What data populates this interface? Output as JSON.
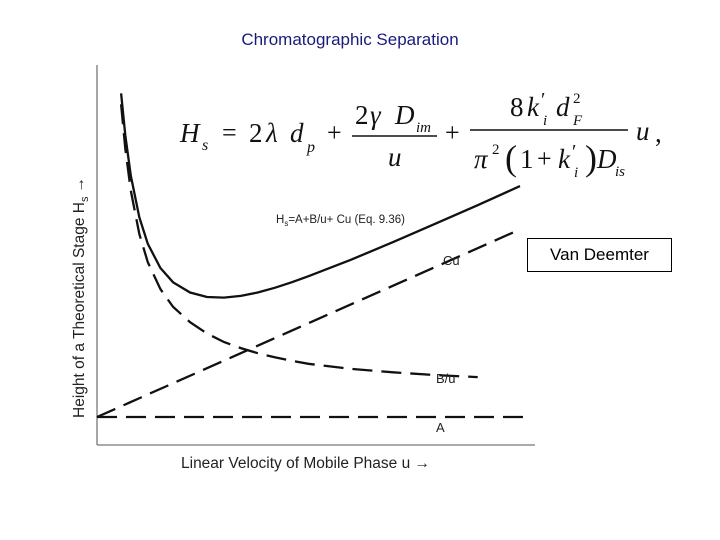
{
  "slide": {
    "title": "Chromatographic Separation",
    "badge": "Van Deemter"
  },
  "equation": {
    "lhs_main": "H",
    "lhs_sub": "s",
    "eq": "=",
    "t1_coef": "2",
    "t1_lambda": "λ",
    "t1_d": "d",
    "t1_sub": "p",
    "plus1": "+",
    "t2_num_coef": "2",
    "t2_num_gamma": "γ",
    "t2_num_D": "D",
    "t2_num_sub": "im",
    "t2_den": "u",
    "plus2": "+",
    "t3_num_coef": "8",
    "t3_num_k": "k",
    "t3_num_k_prime": "′",
    "t3_num_k_sub": "i",
    "t3_num_d": "d",
    "t3_num_d_sub": "F",
    "t3_num_d_sup": "2",
    "t3_den_pi": "π",
    "t3_den_pi_sup": "2",
    "t3_den_lparen": "(",
    "t3_den_one": "1",
    "t3_den_plus": "+",
    "t3_den_k": "k",
    "t3_den_k_prime": "′",
    "t3_den_k_sub": "i",
    "t3_den_rparen": ")",
    "t3_den_D": "D",
    "t3_den_D_sub": "is",
    "tail_u": "u",
    "tail_comma": ","
  },
  "chart_data": {
    "type": "line",
    "xlabel": "Linear Velocity of Mobile Phase  u →",
    "ylabel": "Height of a Theoretical Stage Hs →",
    "ylabel_main": "Height of a Theoretical Stage H",
    "ylabel_sub": "s",
    "ylabel_arrow": "→",
    "curve_label_main": "H",
    "curve_label_sub": "s",
    "curve_label_rest": "=A+B/u+ Cu (Eq. 9.36)",
    "grid": false,
    "xlim": [
      0,
      10
    ],
    "ylim": [
      0,
      10
    ],
    "series": [
      {
        "name": "Hs=A+B/u+ Cu (Eq. 9.36)",
        "style": "solid",
        "x": [
          0.57,
          0.67,
          0.8,
          1.0,
          1.2,
          1.5,
          1.8,
          2.2,
          2.6,
          3.0,
          3.4,
          3.8,
          4.2,
          4.6,
          5.0,
          6.0,
          7.0,
          8.0,
          9.0,
          10.0
        ],
        "y": [
          9.49,
          8.26,
          7.08,
          5.86,
          5.08,
          4.37,
          3.95,
          3.65,
          3.52,
          3.5,
          3.55,
          3.65,
          3.79,
          3.95,
          4.13,
          4.61,
          5.13,
          5.67,
          6.21,
          6.77
        ]
      },
      {
        "name": "Cu",
        "style": "dashed",
        "x": [
          0,
          10
        ],
        "y": [
          0,
          5.5
        ]
      },
      {
        "name": "B/u",
        "style": "dashed",
        "x": [
          0.57,
          0.67,
          0.8,
          1.0,
          1.2,
          1.5,
          1.8,
          2.2,
          2.6,
          3.0,
          3.4,
          3.8,
          4.2,
          4.6,
          5.0,
          6.0,
          7.0,
          8.0,
          9.0
        ],
        "y": [
          9.17,
          7.87,
          6.64,
          5.37,
          4.54,
          3.75,
          3.23,
          2.78,
          2.45,
          2.2,
          2.02,
          1.87,
          1.75,
          1.65,
          1.56,
          1.41,
          1.31,
          1.23,
          1.17
        ]
      },
      {
        "name": "A",
        "style": "dashed",
        "x": [
          0,
          10
        ],
        "y": [
          0,
          0
        ]
      }
    ]
  }
}
